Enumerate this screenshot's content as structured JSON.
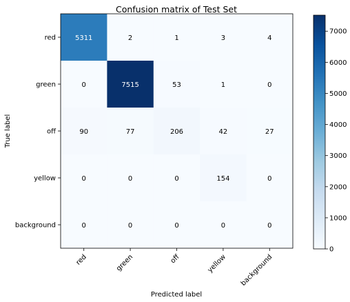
{
  "chart_data": {
    "type": "heatmap",
    "title": "Confusion matrix of Test Set",
    "xlabel": "Predicted label",
    "ylabel": "True label",
    "x_categories": [
      "red",
      "green",
      "off",
      "yellow",
      "background"
    ],
    "y_categories": [
      "red",
      "green",
      "off",
      "yellow",
      "background"
    ],
    "values": [
      [
        5311,
        2,
        1,
        3,
        4
      ],
      [
        0,
        7515,
        53,
        1,
        0
      ],
      [
        90,
        77,
        206,
        42,
        27
      ],
      [
        0,
        0,
        0,
        154,
        0
      ],
      [
        0,
        0,
        0,
        0,
        0
      ]
    ],
    "colormap": "Blues",
    "color_low": "#f7fbff",
    "color_high": "#08306b",
    "vmin": 0,
    "vmax": 7515,
    "colorbar": {
      "ticks": [
        0,
        1000,
        2000,
        3000,
        4000,
        5000,
        6000,
        7000
      ]
    },
    "grid": false,
    "x_tick_rotation_deg": 45
  }
}
